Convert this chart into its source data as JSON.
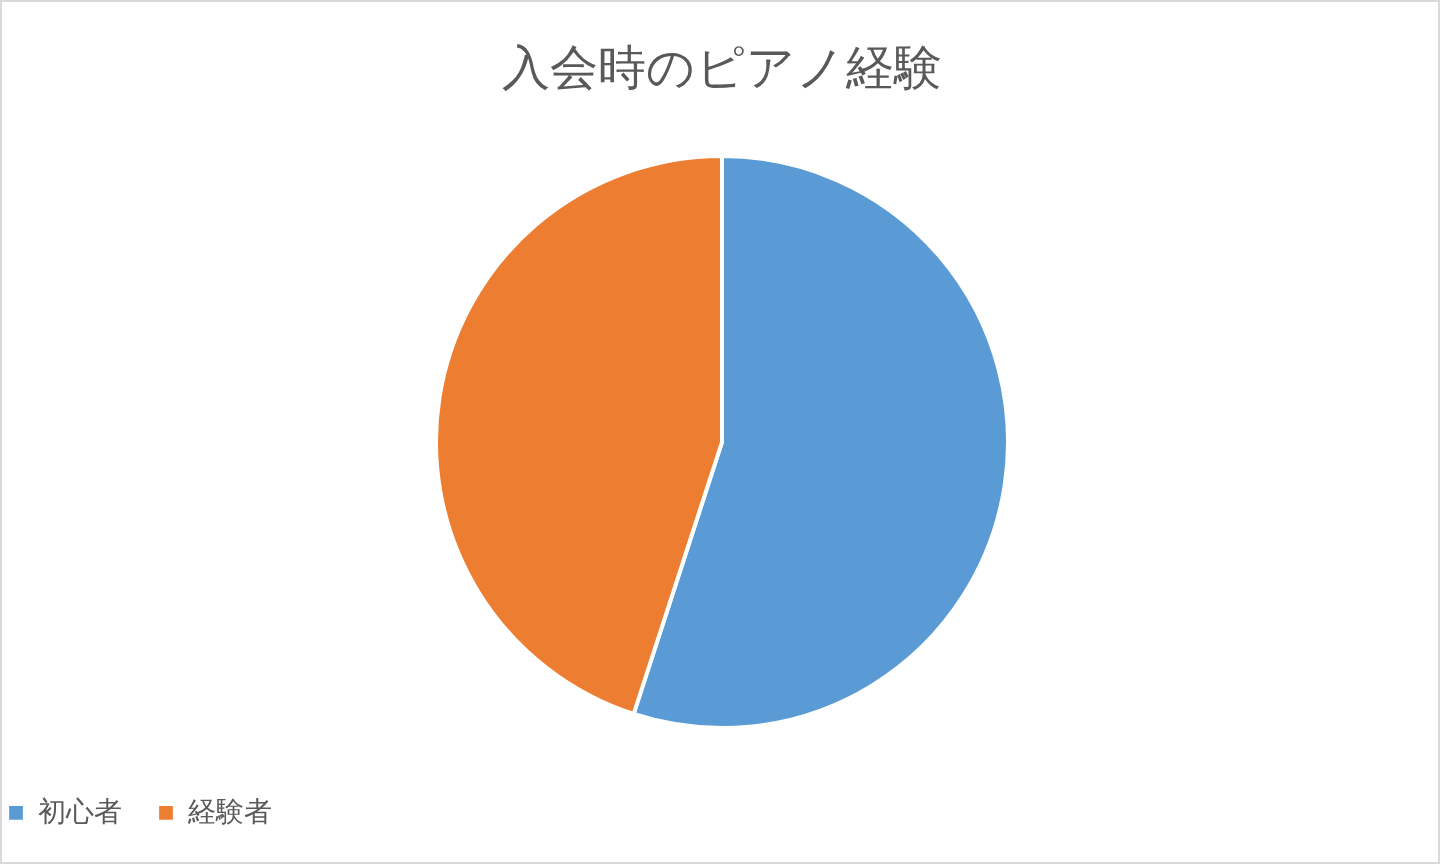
{
  "chart_data": {
    "type": "pie",
    "title": "入会時のピアノ経験",
    "categories": [
      "初心者",
      "経験者"
    ],
    "values": [
      55,
      45
    ],
    "colors": [
      "#5b9bd5",
      "#ed7d31"
    ],
    "legend": "bottom"
  }
}
